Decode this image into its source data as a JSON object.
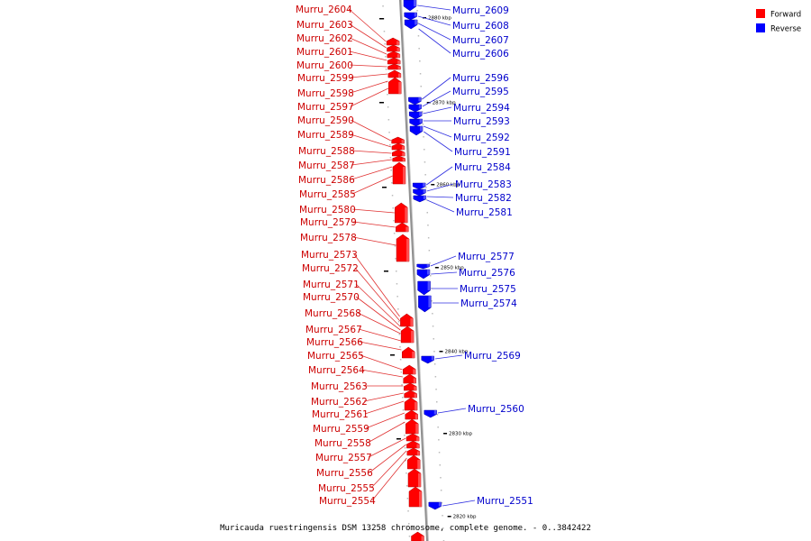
{
  "caption": "Muricauda ruestringensis DSM 13258 chromosome, complete genome. - 0..3842422",
  "legend": [
    {
      "label": "Forward",
      "color": "#ff0000"
    },
    {
      "label": "Reverse",
      "color": "#0000ff"
    }
  ],
  "colors": {
    "forward": "#ff0000",
    "reverse": "#0000ff",
    "forward_text": "#cc0000",
    "reverse_text": "#0000cc",
    "backbone": "#909090"
  },
  "scale_ticks": [
    "2880 kbp",
    "2870 kbp",
    "2860 kbp",
    "2850 kbp",
    "2840 kbp",
    "2830 kbp",
    "2820 kbp"
  ],
  "forward_genes": [
    "Murru_2604",
    "Murru_2603",
    "Murru_2602",
    "Murru_2601",
    "Murru_2600",
    "Murru_2599",
    "Murru_2598",
    "Murru_2597",
    "Murru_2590",
    "Murru_2589",
    "Murru_2588",
    "Murru_2587",
    "Murru_2586",
    "Murru_2585",
    "Murru_2580",
    "Murru_2579",
    "Murru_2578",
    "Murru_2573",
    "Murru_2572",
    "Murru_2571",
    "Murru_2570",
    "Murru_2568",
    "Murru_2567",
    "Murru_2566",
    "Murru_2565",
    "Murru_2564",
    "Murru_2563",
    "Murru_2562",
    "Murru_2561",
    "Murru_2559",
    "Murru_2558",
    "Murru_2557",
    "Murru_2556",
    "Murru_2555",
    "Murru_2554"
  ],
  "reverse_genes": [
    "Murru_2609",
    "Murru_2608",
    "Murru_2607",
    "Murru_2606",
    "Murru_2596",
    "Murru_2595",
    "Murru_2594",
    "Murru_2593",
    "Murru_2592",
    "Murru_2591",
    "Murru_2584",
    "Murru_2583",
    "Murru_2582",
    "Murru_2581",
    "Murru_2577",
    "Murru_2576",
    "Murru_2575",
    "Murru_2574",
    "Murru_2569",
    "Murru_2560",
    "Murru_2551"
  ]
}
